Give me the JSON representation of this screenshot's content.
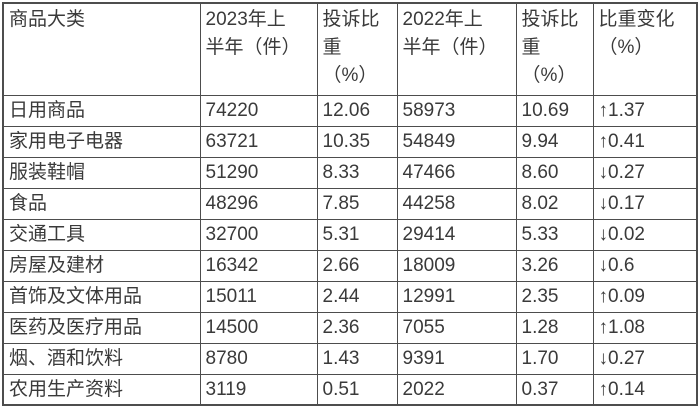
{
  "colors": {
    "border": "#4d4d4d",
    "text": "#3a3a3a",
    "background": "#ffffff"
  },
  "table": {
    "columns": [
      {
        "key": "category",
        "label": "商品大类"
      },
      {
        "key": "h1_2023",
        "label": "2023年上\n半年（件）"
      },
      {
        "key": "ratio_2023",
        "label": "投诉比\n重\n（%）"
      },
      {
        "key": "h1_2022",
        "label": "2022年上\n半年（件）"
      },
      {
        "key": "ratio_2022",
        "label": "投诉比\n重\n（%）"
      },
      {
        "key": "change",
        "label": "比重变化\n（%）"
      }
    ],
    "rows": [
      [
        "日用商品",
        "74220",
        "12.06",
        "58973",
        "10.69",
        "↑1.37"
      ],
      [
        "家用电子电器",
        "63721",
        "10.35",
        "54849",
        "9.94",
        "↑0.41"
      ],
      [
        "服装鞋帽",
        "51290",
        "8.33",
        "47466",
        "8.60",
        "↓0.27"
      ],
      [
        "食品",
        "48296",
        "7.85",
        "44258",
        "8.02",
        "↓0.17"
      ],
      [
        "交通工具",
        "32700",
        "5.31",
        "29414",
        "5.33",
        "↓0.02"
      ],
      [
        "房屋及建材",
        "16342",
        "2.66",
        "18009",
        "3.26",
        "↓0.6"
      ],
      [
        "首饰及文体用品",
        "15011",
        "2.44",
        "12991",
        "2.35",
        "↑0.09"
      ],
      [
        "医药及医疗用品",
        "14500",
        "2.36",
        "7055",
        "1.28",
        "↑1.08"
      ],
      [
        "烟、酒和饮料",
        "8780",
        "1.43",
        "9391",
        "1.70",
        "↓0.27"
      ],
      [
        "农用生产资料",
        "3119",
        "0.51",
        "2022",
        "0.37",
        "↑0.14"
      ]
    ]
  }
}
